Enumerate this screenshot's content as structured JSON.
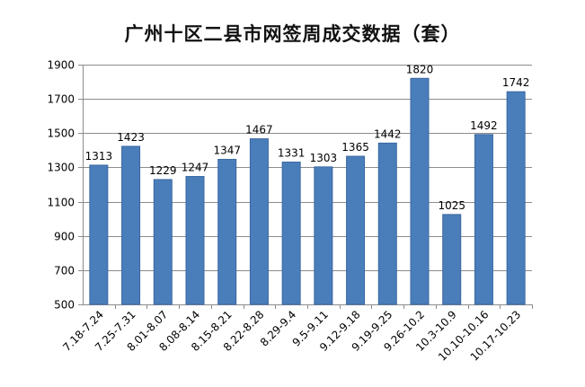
{
  "chart_data": {
    "type": "bar",
    "title": "广州十区二县市网签周成交数据（套）",
    "xlabel": "",
    "ylabel": "",
    "categories": [
      "7.18-7.24",
      "7.25-7.31",
      "8.01-8.07",
      "8.08-8.14",
      "8.15-8.21",
      "8.22-8.28",
      "8.29-9.4",
      "9.5-9.11",
      "9.12-9.18",
      "9.19-9.25",
      "9.26-10.2",
      "10.3-10.9",
      "10.10-10.16",
      "10.17-10.23"
    ],
    "values": [
      1313,
      1423,
      1229,
      1247,
      1347,
      1467,
      1331,
      1303,
      1365,
      1442,
      1820,
      1025,
      1492,
      1742
    ],
    "yticks": [
      500,
      700,
      900,
      1100,
      1300,
      1500,
      1700,
      1900
    ],
    "ylim": [
      500,
      1900
    ],
    "grid": true,
    "legend": "none",
    "colors": {
      "bar": "#4a7ebb",
      "bar_edge": "#3a67a0",
      "grid": "#8c8c8c",
      "axis": "#8c8c8c",
      "text": "#000000"
    }
  }
}
